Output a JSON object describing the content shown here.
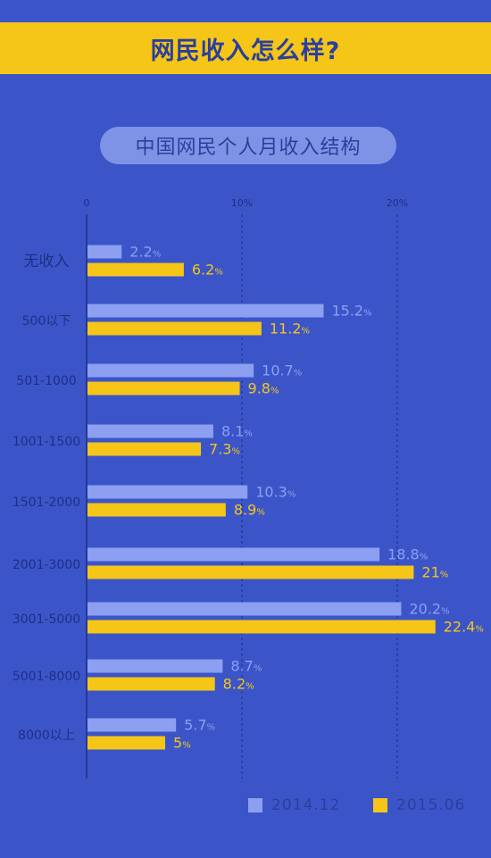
{
  "header": {
    "title": "网民收入怎么样?"
  },
  "subtitle": "中国网民个人月收入结构",
  "colors": {
    "series1": "#8c9ff0",
    "series2": "#f5c518",
    "background": "#3b55c9",
    "text": "#1e2f85"
  },
  "legend": [
    {
      "label": "2014.12",
      "color": "#8c9ff0"
    },
    {
      "label": "2015.06",
      "color": "#f5c518"
    }
  ],
  "chart_data": {
    "type": "bar",
    "orientation": "horizontal",
    "title": "中国网民个人月收入结构",
    "xlim": [
      0,
      25
    ],
    "x_ticks": [
      {
        "value": 0,
        "label": "0"
      },
      {
        "value": 10,
        "label": "10%"
      },
      {
        "value": 20,
        "label": "20%"
      }
    ],
    "grid": "dashed vertical at 10 and 20",
    "categories": [
      "无收入",
      "500以下",
      "501-1000",
      "1001-1500",
      "1501-2000",
      "2001-3000",
      "3001-5000",
      "5001-8000",
      "8000以上"
    ],
    "series": [
      {
        "name": "2014.12",
        "values": [
          2.2,
          15.2,
          10.7,
          8.1,
          10.3,
          18.8,
          20.2,
          8.7,
          5.7
        ]
      },
      {
        "name": "2015.06",
        "values": [
          6.2,
          11.2,
          9.8,
          7.3,
          8.9,
          21,
          22.4,
          8.2,
          5
        ]
      }
    ],
    "value_suffix": "%",
    "legend_position": "bottom-right"
  }
}
